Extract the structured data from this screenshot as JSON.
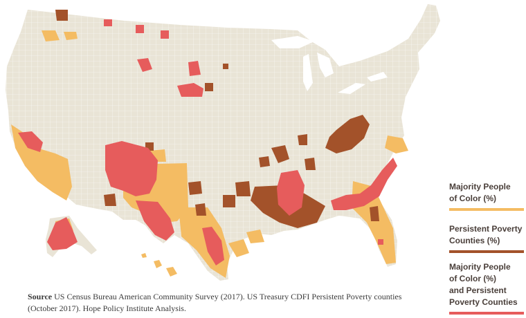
{
  "legend": {
    "items": [
      {
        "line1": "Majority People",
        "line2": "of Color (%)",
        "line3": "",
        "color": "#f4bc63"
      },
      {
        "line1": "Persistent Poverty",
        "line2": "Counties (%)",
        "line3": "",
        "color": "#a3522a"
      },
      {
        "line1": "Majority People",
        "line2": "of Color (%)",
        "line3": "and Persistent",
        "line4": "Poverty Counties",
        "color": "#e65c5c"
      }
    ]
  },
  "source": {
    "label": "Source",
    "text": "US Census Bureau American Community Survey (2017). US Treasury CDFI Persistent Poverty counties (October 2017). Hope Policy Institute Analysis."
  },
  "map": {
    "base_color": "#e9e4d6",
    "border_color": "#ffffff",
    "category_names": [
      "majority-people-of-color",
      "persistent-poverty",
      "both"
    ]
  }
}
